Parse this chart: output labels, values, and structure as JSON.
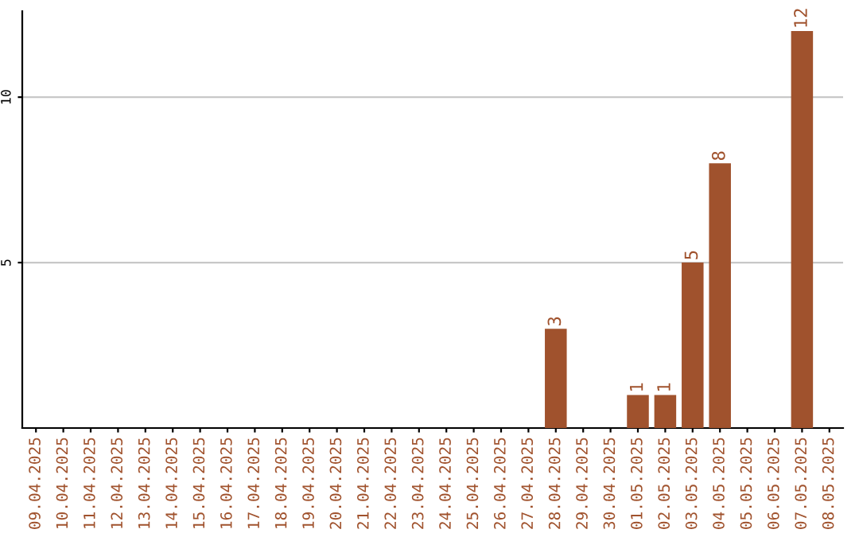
{
  "chart_data": {
    "type": "bar",
    "categories": [
      "09.04.2025",
      "10.04.2025",
      "11.04.2025",
      "12.04.2025",
      "13.04.2025",
      "14.04.2025",
      "15.04.2025",
      "16.04.2025",
      "17.04.2025",
      "18.04.2025",
      "19.04.2025",
      "20.04.2025",
      "21.04.2025",
      "22.04.2025",
      "23.04.2025",
      "24.04.2025",
      "25.04.2025",
      "26.04.2025",
      "27.04.2025",
      "28.04.2025",
      "29.04.2025",
      "30.04.2025",
      "01.05.2025",
      "02.05.2025",
      "03.05.2025",
      "04.05.2025",
      "05.05.2025",
      "06.05.2025",
      "07.05.2025",
      "08.05.2025"
    ],
    "values": [
      0,
      0,
      0,
      0,
      0,
      0,
      0,
      0,
      0,
      0,
      0,
      0,
      0,
      0,
      0,
      0,
      0,
      0,
      0,
      3,
      0,
      0,
      1,
      1,
      5,
      8,
      0,
      0,
      12,
      0
    ],
    "value_labels": [
      null,
      null,
      null,
      null,
      null,
      null,
      null,
      null,
      null,
      null,
      null,
      null,
      null,
      null,
      null,
      null,
      null,
      null,
      null,
      "3",
      null,
      null,
      "1",
      "1",
      "5",
      "8",
      null,
      null,
      "12",
      null
    ],
    "color": "#a0522d",
    "ylim": [
      0,
      12.6
    ],
    "yticks": [
      5,
      10
    ],
    "grid": "y"
  }
}
